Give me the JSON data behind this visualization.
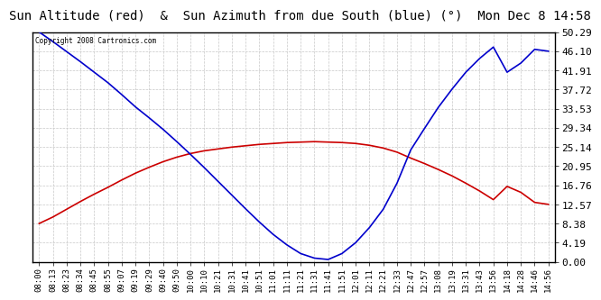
{
  "title": "Sun Altitude (red)  &  Sun Azimuth from due South (blue) (°)  Mon Dec 8 14:58",
  "copyright": "Copyright 2008 Cartronics.com",
  "yticks": [
    0.0,
    4.19,
    8.38,
    12.57,
    16.76,
    20.95,
    25.14,
    29.34,
    33.53,
    37.72,
    41.91,
    46.1,
    50.29
  ],
  "ylim": [
    0.0,
    50.29
  ],
  "x_labels": [
    "08:00",
    "08:13",
    "08:23",
    "08:34",
    "08:45",
    "08:55",
    "09:07",
    "09:19",
    "09:29",
    "09:40",
    "09:50",
    "10:00",
    "10:10",
    "10:21",
    "10:31",
    "10:41",
    "10:51",
    "11:01",
    "11:11",
    "11:21",
    "11:31",
    "11:41",
    "11:51",
    "12:01",
    "12:11",
    "12:21",
    "12:33",
    "12:47",
    "12:57",
    "13:08",
    "13:19",
    "13:31",
    "13:43",
    "13:56",
    "14:18",
    "14:28",
    "14:46",
    "14:56"
  ],
  "red_data": [
    8.38,
    9.8,
    11.5,
    13.2,
    14.8,
    16.3,
    17.9,
    19.4,
    20.7,
    21.9,
    22.9,
    23.7,
    24.3,
    24.7,
    25.1,
    25.4,
    25.7,
    25.9,
    26.1,
    26.2,
    26.3,
    26.2,
    26.1,
    25.9,
    25.5,
    24.9,
    24.0,
    22.7,
    21.5,
    20.2,
    18.8,
    17.2,
    15.5,
    13.6,
    16.5,
    15.2,
    13.0,
    12.57
  ],
  "blue_data": [
    50.29,
    48.2,
    46.0,
    43.8,
    41.5,
    39.2,
    36.6,
    33.9,
    31.5,
    29.0,
    26.3,
    23.5,
    20.6,
    17.6,
    14.6,
    11.6,
    8.7,
    6.0,
    3.7,
    1.8,
    0.8,
    0.5,
    1.8,
    4.2,
    7.5,
    11.5,
    17.2,
    24.5,
    29.2,
    33.8,
    37.8,
    41.5,
    44.5,
    47.0,
    41.5,
    43.5,
    46.5,
    46.1
  ],
  "bg_color": "#ffffff",
  "grid_color": "#c8c8c8",
  "red_color": "#cc0000",
  "blue_color": "#0000cc",
  "title_fontsize": 10,
  "tick_fontsize": 6.5,
  "ytick_fontsize": 8
}
